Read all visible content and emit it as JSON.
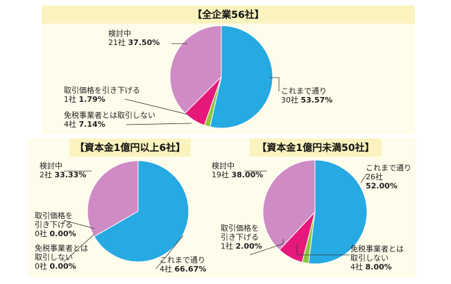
{
  "colors": {
    "これまで通り": "#27a9e1",
    "取引価格を引き下げる": "#8dc63f",
    "免税事業者とは取引しない": "#e6197b",
    "検討中": "#cf8cc4",
    "leader": "#333333",
    "header_bg": "#fbf3bf",
    "area_bg": "#fefcea"
  },
  "chart_data": [
    {
      "type": "pie",
      "title": "【全企業56社】",
      "slices": [
        {
          "name": "これまで通り",
          "count": "30社",
          "pct": "53.57%",
          "value": 53.57
        },
        {
          "name": "取引価格を引き下げる",
          "count": "1社",
          "pct": "1.79%",
          "value": 1.79
        },
        {
          "name": "免税事業者とは取引しない",
          "count": "4社",
          "pct": "7.14%",
          "value": 7.14
        },
        {
          "name": "検討中",
          "count": "21社",
          "pct": "37.50%",
          "value": 37.5
        }
      ]
    },
    {
      "type": "pie",
      "title": "【資本金1億円以上6社】",
      "slices": [
        {
          "name": "これまで通り",
          "count": "4社",
          "pct": "66.67%",
          "value": 66.67
        },
        {
          "name": "取引価格を引き下げる",
          "count": "0社",
          "pct": "0.00%",
          "value": 0.0
        },
        {
          "name": "免税事業者とは取引しない",
          "count": "0社",
          "pct": "0.00%",
          "value": 0.0
        },
        {
          "name": "検討中",
          "count": "2社",
          "pct": "33.33%",
          "value": 33.33
        }
      ]
    },
    {
      "type": "pie",
      "title": "【資本金1億円未満50社】",
      "slices": [
        {
          "name": "これまで通り",
          "count": "26社",
          "pct": "52.00%",
          "value": 52.0
        },
        {
          "name": "取引価格を引き下げる",
          "count": "1社",
          "pct": "2.00%",
          "value": 2.0
        },
        {
          "name": "免税事業者とは取引しない",
          "count": "4社",
          "pct": "8.00%",
          "value": 8.0
        },
        {
          "name": "検討中",
          "count": "19社",
          "pct": "38.00%",
          "value": 38.0
        }
      ]
    }
  ],
  "labels": {
    "c1_s0_name": "これまで通り",
    "c1_s1_name": "取引価格を引き下げる",
    "c1_s2_name": "免税事業者とは取引しない",
    "c1_s3_name": "検討中",
    "c2_s0_name": "これまで通り",
    "c2_s1_name_l1": "取引価格を",
    "c2_s1_name_l2": "引き下げる",
    "c2_s2_name_l1": "免税事業者とは",
    "c2_s2_name_l2": "取引しない",
    "c2_s3_name": "検討中",
    "c3_s0_name_l1": "これまで通り",
    "c3_s0_count": "26社",
    "c3_s1_name_l1": "取引価格を",
    "c3_s1_name_l2": "引き下げる",
    "c3_s2_name_l1": "免税事業者とは",
    "c3_s2_name_l2": "取引しない",
    "c3_s3_name": "検討中"
  }
}
